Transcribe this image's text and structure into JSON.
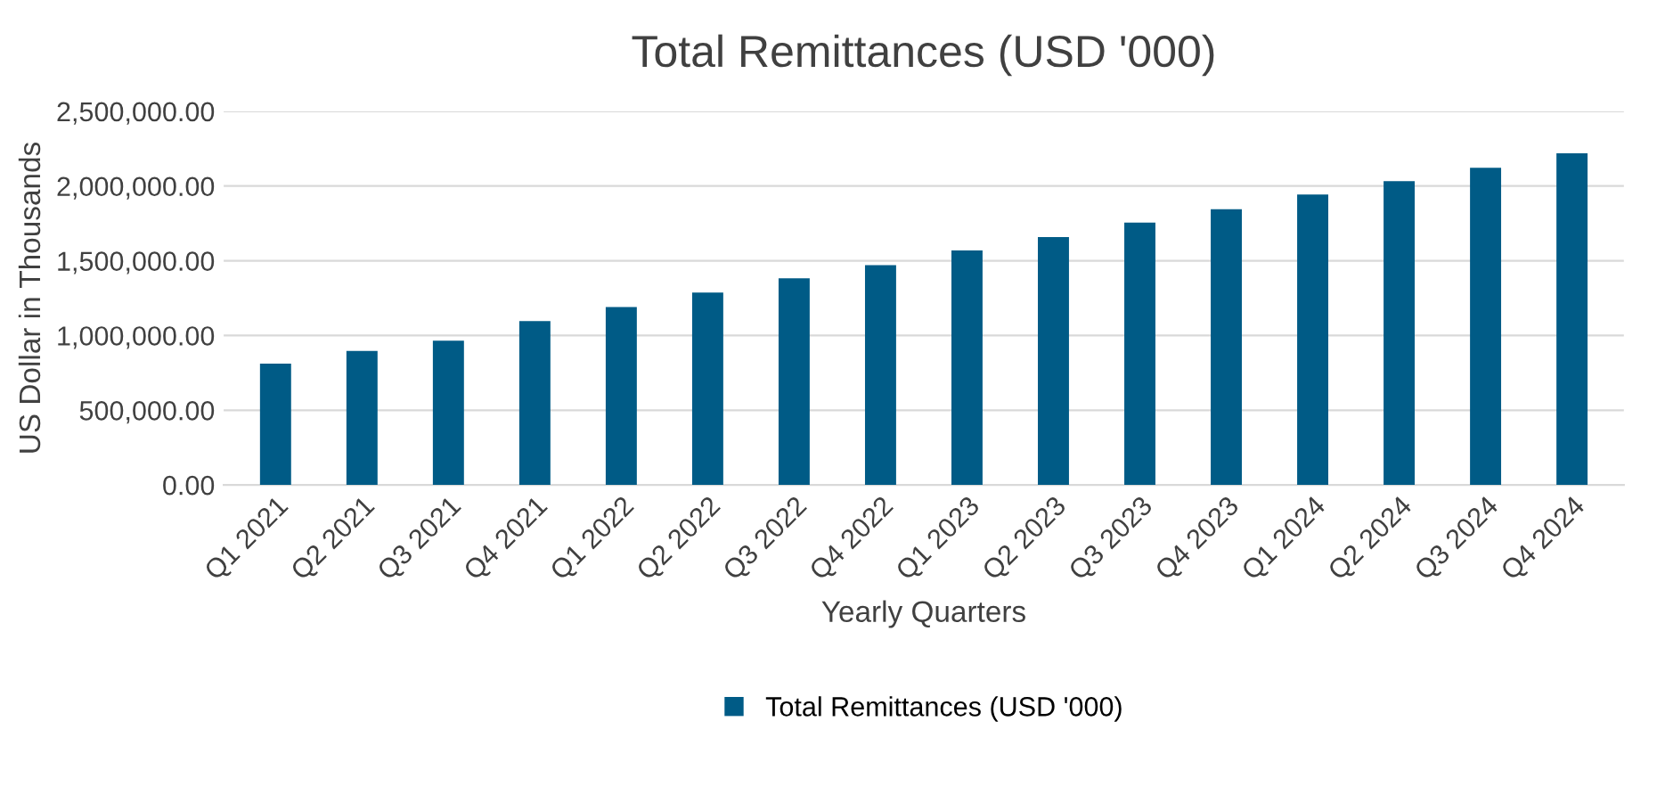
{
  "chart_data": {
    "type": "bar",
    "title": "Total Remittances (USD '000)",
    "xlabel": "Yearly Quarters",
    "ylabel": "US Dollar in Thousands",
    "categories": [
      "Q1 2021",
      "Q2 2021",
      "Q3 2021",
      "Q4 2021",
      "Q1 2022",
      "Q2 2022",
      "Q3 2022",
      "Q4 2022",
      "Q1 2023",
      "Q2 2023",
      "Q3 2023",
      "Q4 2023",
      "Q1 2024",
      "Q2 2024",
      "Q3 2024",
      "Q4 2024"
    ],
    "series": [
      {
        "name": "Total Remittances (USD '000)",
        "color": "#005b86",
        "values": [
          812000,
          897000,
          965000,
          1097000,
          1190000,
          1288000,
          1382000,
          1471000,
          1569000,
          1658000,
          1756000,
          1845000,
          1943000,
          2032000,
          2122000,
          2219000
        ]
      }
    ],
    "ylim": [
      0,
      2500000
    ],
    "yticks": [
      {
        "value": 0,
        "label": "0.00"
      },
      {
        "value": 500000,
        "label": "500,000.00"
      },
      {
        "value": 1000000,
        "label": "1,000,000.00"
      },
      {
        "value": 1500000,
        "label": "1,500,000.00"
      },
      {
        "value": 2000000,
        "label": "2,000,000.00"
      },
      {
        "value": 2500000,
        "label": "2,500,000.00"
      }
    ],
    "grid": "y",
    "legend": "bottom"
  }
}
